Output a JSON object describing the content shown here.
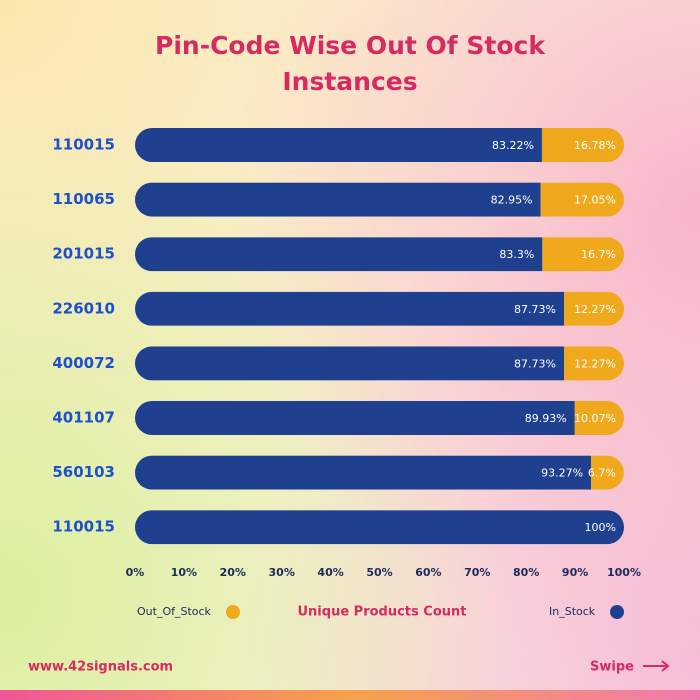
{
  "chart_data": {
    "type": "stacked_bar_horizontal",
    "title": "Pin-Code Wise Out Of Stock Instances",
    "categories": [
      "110015",
      "110065",
      "201015",
      "226010",
      "400072",
      "401107",
      "560103",
      "110015"
    ],
    "series": [
      {
        "name": "In_Stock",
        "color": "#1f3f8f",
        "values": [
          83.22,
          82.95,
          83.3,
          87.73,
          87.73,
          89.93,
          93.27,
          100
        ],
        "value_labels": [
          "83.22%",
          "82.95%",
          "83.3%",
          "87.73%",
          "87.73%",
          "89.93%",
          "93.27%",
          "100%"
        ]
      },
      {
        "name": "Out_Of_Stock",
        "color": "#f0a81c",
        "values": [
          16.78,
          17.05,
          16.7,
          12.27,
          12.27,
          10.07,
          6.7,
          0
        ],
        "value_labels": [
          "16.78%",
          "17.05%",
          "16.7%",
          "12.27%",
          "12.27%",
          "10.07%",
          "6.7%",
          null
        ]
      }
    ],
    "x_label": "Unique Products Count",
    "xlim": [
      0,
      100
    ],
    "xticks": [
      {
        "value": 0,
        "label": "0%"
      },
      {
        "value": 10,
        "label": "10%"
      },
      {
        "value": 20,
        "label": "20%"
      },
      {
        "value": 30,
        "label": "30%"
      },
      {
        "value": 40,
        "label": "40%"
      },
      {
        "value": 50,
        "label": "50%"
      },
      {
        "value": 60,
        "label": "60%"
      },
      {
        "value": 70,
        "label": "70%"
      },
      {
        "value": 80,
        "label": "80%"
      },
      {
        "value": 90,
        "label": "90%"
      },
      {
        "value": 100,
        "label": "100%"
      }
    ]
  },
  "footer": {
    "website": "www.42signals.com",
    "swipe": "Swipe"
  }
}
